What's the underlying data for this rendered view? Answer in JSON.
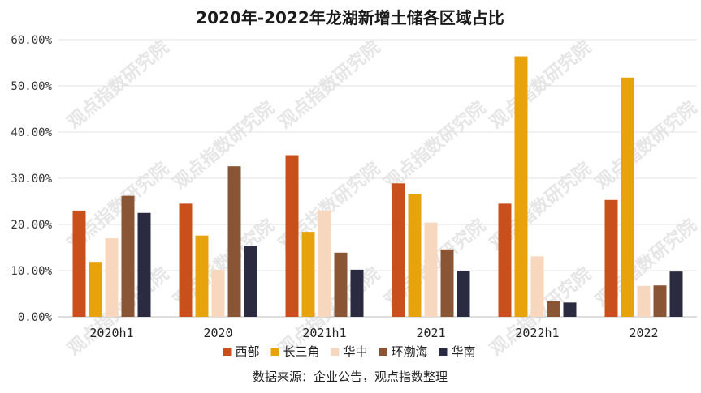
{
  "watermark_text": "观点指数研究院",
  "source_text": "数据来源：企业公告，观点指数整理",
  "chart_data": {
    "type": "bar",
    "title": "2020年-2022年龙湖新增土储各区域占比",
    "xlabel": "",
    "ylabel": "",
    "ylim": [
      0,
      60
    ],
    "yticks": [
      "0.00%",
      "10.00%",
      "20.00%",
      "30.00%",
      "40.00%",
      "50.00%",
      "60.00%"
    ],
    "grid": true,
    "legend_position": "bottom",
    "categories": [
      "2020h1",
      "2020",
      "2021h1",
      "2021",
      "2022h1",
      "2022"
    ],
    "series": [
      {
        "name": "西部",
        "color": "#C9501C",
        "values": [
          23.0,
          24.5,
          35.0,
          28.9,
          24.5,
          25.3
        ]
      },
      {
        "name": "长三角",
        "color": "#E8A30C",
        "values": [
          11.9,
          17.6,
          18.4,
          26.6,
          56.4,
          51.8
        ]
      },
      {
        "name": "华中",
        "color": "#F7D8BE",
        "values": [
          17.0,
          10.2,
          23.0,
          20.4,
          13.1,
          6.7
        ]
      },
      {
        "name": "环渤海",
        "color": "#8A5535",
        "values": [
          26.2,
          32.6,
          13.9,
          14.6,
          3.4,
          6.8
        ]
      },
      {
        "name": "华南",
        "color": "#2A2B40",
        "values": [
          22.5,
          15.4,
          10.2,
          10.0,
          3.1,
          9.8
        ]
      }
    ]
  }
}
